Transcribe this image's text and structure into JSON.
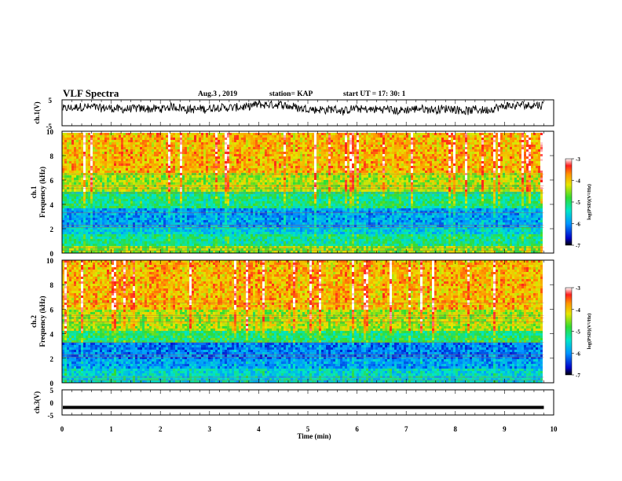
{
  "header": {
    "title": "VLF Spectra",
    "date": "Aug.3 , 2019",
    "station": "station= KAP",
    "start": "start UT = 17: 30: 1"
  },
  "chart_data": [
    {
      "type": "line",
      "title": "",
      "ylabel": "ch.1(V)",
      "ylim": [
        -5,
        5
      ],
      "y_ticks": [
        "5",
        "-5"
      ],
      "xlim": [
        0,
        10
      ],
      "series": [
        {
          "color": "#000000",
          "shape": "noisy waveform, mostly between -2 and 4 V"
        }
      ]
    },
    {
      "type": "heatmap",
      "ylabel": "ch.1\nFrequency (kHz)",
      "ylabel_lines": [
        "ch.1",
        "Frequency (kHz)"
      ],
      "ylim": [
        0,
        10
      ],
      "y_ticks": [
        "0",
        "2",
        "4",
        "6",
        "8",
        "10"
      ],
      "xlim": [
        0,
        10
      ],
      "data_extent_min": 9.8,
      "colorbar": {
        "label": "log(PSD)(V²/Hz)",
        "ticks": [
          "-3",
          "-4",
          "-5",
          "-6",
          "-7"
        ],
        "range": [
          -7,
          -3
        ]
      },
      "bands_log_psd": [
        {
          "f": [
            0,
            0.5
          ],
          "level": -4.6
        },
        {
          "f": [
            0.5,
            1.5
          ],
          "level": -5.2
        },
        {
          "f": [
            1.5,
            2.2
          ],
          "level": -5.6
        },
        {
          "f": [
            2.2,
            3.6
          ],
          "level": -5.9
        },
        {
          "f": [
            3.6,
            5.0
          ],
          "level": -5.1
        },
        {
          "f": [
            5.0,
            6.5
          ],
          "level": -4.4
        },
        {
          "f": [
            6.5,
            10
          ],
          "level": -3.9
        }
      ]
    },
    {
      "type": "heatmap",
      "ylabel": "ch.2\nFrequency (kHz)",
      "ylabel_lines": [
        "ch.2",
        "Frequency (kHz)"
      ],
      "ylim": [
        0,
        10
      ],
      "y_ticks": [
        "0",
        "2",
        "4",
        "6",
        "8",
        "10"
      ],
      "xlim": [
        0,
        10
      ],
      "data_extent_min": 9.8,
      "colorbar": {
        "label": "log(PSD)(V²/Hz)",
        "ticks": [
          "-3",
          "-4",
          "-5",
          "-6",
          "-7"
        ],
        "range": [
          -7,
          -3
        ]
      },
      "bands_log_psd": [
        {
          "f": [
            0,
            1.2
          ],
          "level": -5.5
        },
        {
          "f": [
            1.2,
            2.0
          ],
          "level": -5.9
        },
        {
          "f": [
            2.0,
            3.3
          ],
          "level": -6.1
        },
        {
          "f": [
            3.3,
            4.2
          ],
          "level": -5.0
        },
        {
          "f": [
            4.2,
            6.0
          ],
          "level": -4.4
        },
        {
          "f": [
            6.0,
            10
          ],
          "level": -3.9
        }
      ]
    },
    {
      "type": "line",
      "ylabel": "ch.3(V)",
      "ylim": [
        -5,
        5
      ],
      "y_ticks": [
        "5",
        "0",
        "-5"
      ],
      "xlim": [
        0,
        10
      ],
      "xlabel": "Time (min)",
      "x_ticks": [
        "0",
        "1",
        "2",
        "3",
        "4",
        "5",
        "6",
        "7",
        "8",
        "9",
        "10"
      ],
      "series": [
        {
          "color": "#000000",
          "constant_value": -2
        }
      ]
    }
  ]
}
